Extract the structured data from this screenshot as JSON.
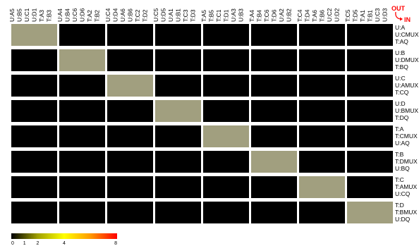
{
  "chart_data": {
    "type": "heatmap",
    "column_groups": [
      [
        "U:A5",
        "U:B5",
        "U:C1",
        "U:D1",
        "T:A3",
        "T:B3"
      ],
      [
        "U:A4",
        "U:B4",
        "U:C6",
        "U:D6",
        "T:A2",
        "T:B2"
      ],
      [
        "U:C4",
        "U:D4",
        "U:A6",
        "U:B6",
        "T:C2",
        "T:D2"
      ],
      [
        "U:C5",
        "U:D5",
        "U:A1",
        "U:B1",
        "T:C3",
        "T:D3"
      ],
      [
        "T:A5",
        "T:B5",
        "T:C1",
        "T:D1",
        "U:A3",
        "U:B3"
      ],
      [
        "T:A4",
        "T:B4",
        "T:C6",
        "T:D6",
        "U:A2",
        "U:B2"
      ],
      [
        "T:C4",
        "T:D4",
        "T:A6",
        "T:B6",
        "U:C2",
        "U:D2"
      ],
      [
        "T:C5",
        "T:D5",
        "T:A1",
        "T:B1",
        "U:C3",
        "U:D3"
      ]
    ],
    "row_labels": [
      [
        "U:A",
        "U:CMUX",
        "T:AQ"
      ],
      [
        "U:B",
        "U:DMUX",
        "T:BQ"
      ],
      [
        "U:C",
        "U:AMUX",
        "T:CQ"
      ],
      [
        "U:D",
        "U:BMUX",
        "T:DQ"
      ],
      [
        "T:A",
        "T:CMUX",
        "U:AQ"
      ],
      [
        "T:B",
        "T:DMUX",
        "U:BQ"
      ],
      [
        "T:C",
        "T:AMUX",
        "U:CQ"
      ],
      [
        "T:D",
        "T:BMUX",
        "U:DQ"
      ]
    ],
    "values": [
      [
        1.3,
        0,
        0,
        0,
        0,
        0,
        0,
        0
      ],
      [
        0,
        1.3,
        0,
        0,
        0,
        0,
        0,
        0
      ],
      [
        0,
        0,
        1.3,
        0,
        0,
        0,
        0,
        0
      ],
      [
        0,
        0,
        0,
        1.3,
        0,
        0,
        0,
        0
      ],
      [
        0,
        0,
        0,
        0,
        1.3,
        0,
        0,
        0
      ],
      [
        0,
        0,
        0,
        0,
        0,
        1.3,
        0,
        0
      ],
      [
        0,
        0,
        0,
        0,
        0,
        0,
        1.3,
        0
      ],
      [
        0,
        0,
        0,
        0,
        0,
        0,
        0,
        1.3
      ]
    ],
    "cell_colors": {
      "zero": "#000000",
      "active": "#a19f7f"
    },
    "corner_labels": {
      "out": "OUT",
      "in": "IN"
    },
    "corner_color": "#ff0000",
    "colorbar": {
      "ticks": [
        "0",
        "1",
        "2",
        "4",
        "8"
      ],
      "tick_values": [
        0,
        1,
        2,
        4,
        8
      ],
      "range": [
        0,
        8
      ],
      "stops": [
        "#000000",
        "#a0a000",
        "#ffff00",
        "#ff9900",
        "#ff0000"
      ]
    }
  }
}
